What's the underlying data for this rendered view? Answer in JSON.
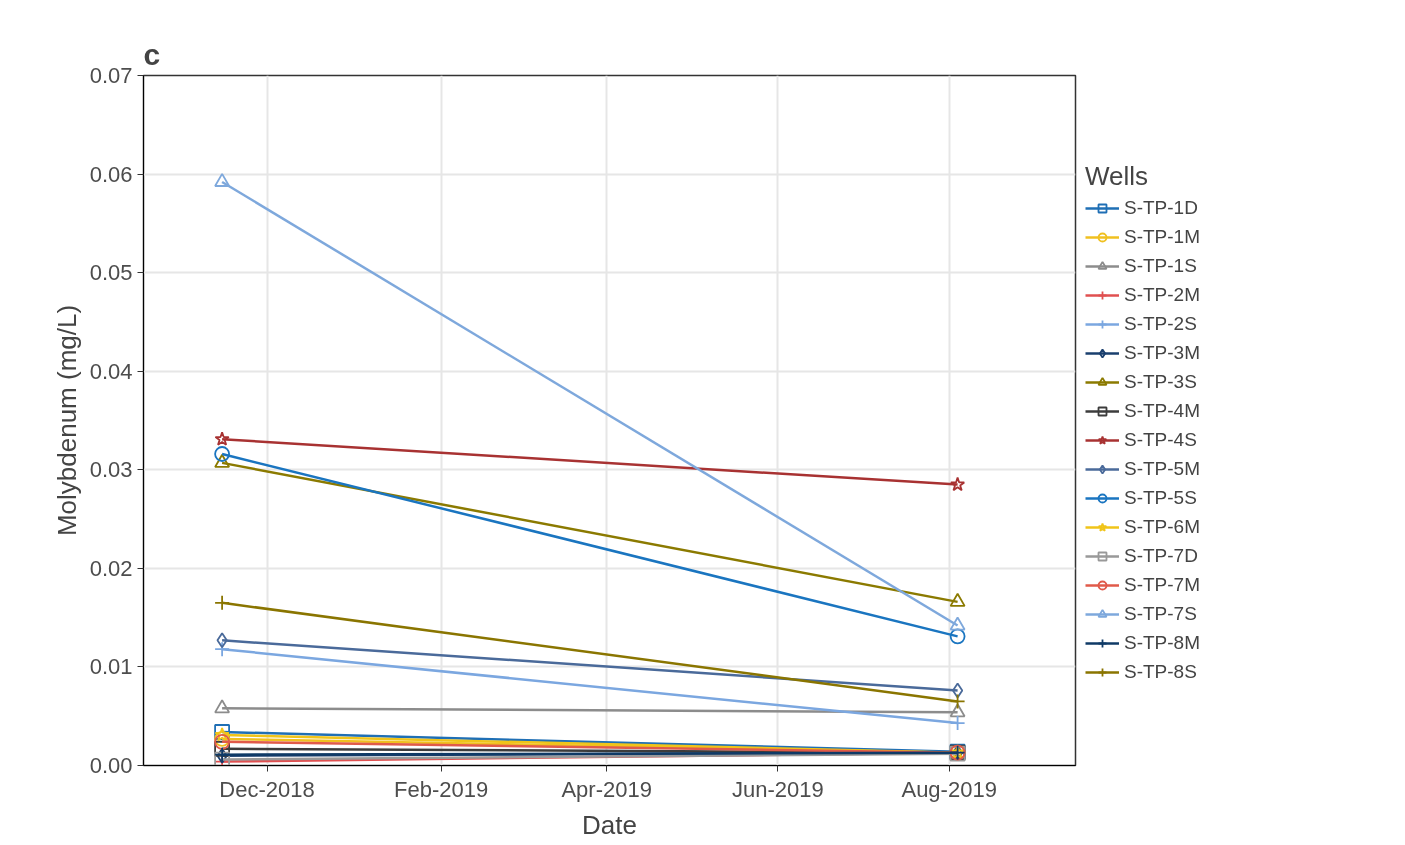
{
  "chart_data": {
    "type": "line",
    "title": "c",
    "xlabel": "Date",
    "ylabel": "Molybdenum (mg/L)",
    "legend_title": "Wells",
    "legend": "right",
    "grid": true,
    "xlim": [
      "2018-10-18",
      "2019-09-15"
    ],
    "xticks": [
      {
        "value": "2018-12-01",
        "label": "Dec-2018"
      },
      {
        "value": "2019-02-01",
        "label": "Feb-2019"
      },
      {
        "value": "2019-04-01",
        "label": "Apr-2019"
      },
      {
        "value": "2019-06-01",
        "label": "Jun-2019"
      },
      {
        "value": "2019-08-01",
        "label": "Aug-2019"
      }
    ],
    "ylim": [
      0,
      0.07
    ],
    "yticks": [
      {
        "value": 0,
        "label": "0.00"
      },
      {
        "value": 0.01,
        "label": "0.01"
      },
      {
        "value": 0.02,
        "label": "0.02"
      },
      {
        "value": 0.03,
        "label": "0.03"
      },
      {
        "value": 0.04,
        "label": "0.04"
      },
      {
        "value": 0.05,
        "label": "0.05"
      },
      {
        "value": 0.06,
        "label": "0.06"
      },
      {
        "value": 0.07,
        "label": "0.07"
      }
    ],
    "x": [
      "2018-11-15",
      "2019-08-04"
    ],
    "series": [
      {
        "name": "S-TP-1D",
        "color": "#1f6fb5",
        "marker": "square",
        "values": [
          0.0034,
          0.0014
        ]
      },
      {
        "name": "S-TP-1M",
        "color": "#f0c020",
        "marker": "circle",
        "values": [
          0.0027,
          0.0013
        ]
      },
      {
        "name": "S-TP-1S",
        "color": "#8c8c8c",
        "marker": "triangle",
        "values": [
          0.0058,
          0.0054
        ]
      },
      {
        "name": "S-TP-2M",
        "color": "#e05050",
        "marker": "cross",
        "values": [
          0.0004,
          0.0013
        ]
      },
      {
        "name": "S-TP-2S",
        "color": "#7ba7e0",
        "marker": "cross",
        "values": [
          0.0118,
          0.0043
        ]
      },
      {
        "name": "S-TP-3M",
        "color": "#1a3f6e",
        "marker": "diamond",
        "values": [
          0.001,
          0.0013
        ]
      },
      {
        "name": "S-TP-3S",
        "color": "#8b7a00",
        "marker": "triangle",
        "values": [
          0.0307,
          0.0166
        ]
      },
      {
        "name": "S-TP-4M",
        "color": "#3c3c3c",
        "marker": "square",
        "values": [
          0.0017,
          0.0013
        ]
      },
      {
        "name": "S-TP-4S",
        "color": "#a83232",
        "marker": "star",
        "values": [
          0.0331,
          0.0285
        ]
      },
      {
        "name": "S-TP-5M",
        "color": "#4a6a9a",
        "marker": "diamond",
        "values": [
          0.0127,
          0.0076
        ]
      },
      {
        "name": "S-TP-5S",
        "color": "#1a75c0",
        "marker": "circle",
        "values": [
          0.0316,
          0.0131
        ]
      },
      {
        "name": "S-TP-6M",
        "color": "#f0c419",
        "marker": "star",
        "values": [
          0.0031,
          0.0013
        ]
      },
      {
        "name": "S-TP-7D",
        "color": "#999999",
        "marker": "square",
        "values": [
          0.0006,
          0.0012
        ]
      },
      {
        "name": "S-TP-7M",
        "color": "#e05a4a",
        "marker": "circle",
        "values": [
          0.0024,
          0.0013
        ]
      },
      {
        "name": "S-TP-7S",
        "color": "#7ea8dc",
        "marker": "triangle",
        "values": [
          0.0592,
          0.0142
        ]
      },
      {
        "name": "S-TP-8M",
        "color": "#0f3a66",
        "marker": "cross",
        "values": [
          0.0011,
          0.0013
        ]
      },
      {
        "name": "S-TP-8S",
        "color": "#8a7500",
        "marker": "cross",
        "values": [
          0.0165,
          0.0065
        ]
      }
    ]
  }
}
